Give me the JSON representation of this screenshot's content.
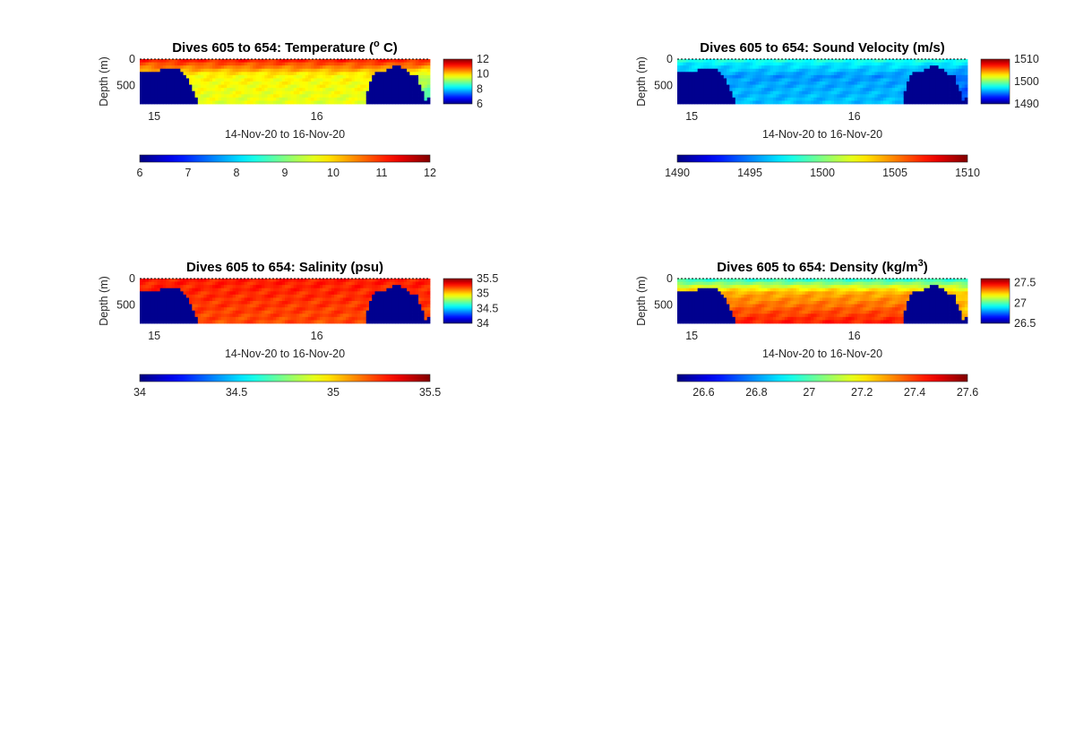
{
  "chart_data": [
    {
      "type": "heatmap",
      "title": "Dives 605 to 654: Temperature (",
      "title_super": "o",
      "title_suffix": " C)",
      "xlabel": "14-Nov-20 to 16-Nov-20",
      "ylabel": "Depth (m)",
      "x_ticks": [
        "15",
        "16"
      ],
      "y_ticks": [
        "0",
        "500"
      ],
      "ylim": [
        0,
        850
      ],
      "variable": "temperature",
      "cmin": 6,
      "cmax": 12,
      "right_colorbar_ticks": [
        "12",
        "10",
        "8",
        "6"
      ],
      "bottom_colorbar_ticks": [
        "6",
        "7",
        "8",
        "9",
        "10",
        "11",
        "12"
      ]
    },
    {
      "type": "heatmap",
      "title": "Dives 605 to 654: Sound Velocity (m/s)",
      "title_super": "",
      "title_suffix": "",
      "xlabel": "14-Nov-20 to 16-Nov-20",
      "ylabel": "Depth (m)",
      "x_ticks": [
        "15",
        "16"
      ],
      "y_ticks": [
        "0",
        "500"
      ],
      "ylim": [
        0,
        850
      ],
      "variable": "sound_velocity",
      "cmin": 1490,
      "cmax": 1510,
      "right_colorbar_ticks": [
        "1510",
        "1500",
        "1490"
      ],
      "bottom_colorbar_ticks": [
        "1490",
        "1495",
        "1500",
        "1505",
        "1510"
      ]
    },
    {
      "type": "heatmap",
      "title": "Dives 605 to 654: Salinity (psu)",
      "title_super": "",
      "title_suffix": "",
      "xlabel": "14-Nov-20 to 16-Nov-20",
      "ylabel": "Depth (m)",
      "x_ticks": [
        "15",
        "16"
      ],
      "y_ticks": [
        "0",
        "500"
      ],
      "ylim": [
        0,
        850
      ],
      "variable": "salinity",
      "cmin": 34,
      "cmax": 35.5,
      "right_colorbar_ticks": [
        "35.5",
        "35",
        "34.5",
        "34"
      ],
      "bottom_colorbar_ticks": [
        "34",
        "34.5",
        "35",
        "35.5"
      ]
    },
    {
      "type": "heatmap",
      "title": "Dives 605 to 654: Density (kg/m",
      "title_super": "3",
      "title_suffix": ")",
      "xlabel": "14-Nov-20 to 16-Nov-20",
      "ylabel": "Depth (m)",
      "x_ticks": [
        "15",
        "16"
      ],
      "y_ticks": [
        "0",
        "500"
      ],
      "ylim": [
        0,
        850
      ],
      "variable": "density",
      "cmin": 26.5,
      "cmax": 27.6,
      "right_colorbar_ticks": [
        "27.5",
        "27",
        "26.5"
      ],
      "bottom_colorbar_ticks": [
        "26.6",
        "26.8",
        "27",
        "27.2",
        "27.4",
        "27.6"
      ]
    }
  ],
  "colors": {
    "background": "#ffffff",
    "seafloor": "#00008f",
    "text": "#262626"
  },
  "dive_bottom_depth_m": [
    240,
    240,
    240,
    240,
    230,
    230,
    220,
    190,
    170,
    160,
    160,
    160,
    170,
    190,
    230,
    300,
    380,
    480,
    580,
    700,
    850,
    850,
    850,
    850,
    850,
    850,
    850,
    850,
    850,
    850,
    850,
    850,
    850,
    850,
    850,
    850,
    850,
    850,
    850,
    850,
    850,
    850,
    850,
    850,
    850,
    850,
    850,
    850,
    850,
    850,
    850,
    850,
    850,
    850,
    850,
    850,
    850,
    850,
    850,
    850,
    850,
    850,
    850,
    850,
    850,
    850,
    850,
    850,
    850,
    850,
    850,
    850,
    850,
    850,
    850,
    850,
    850,
    850,
    600,
    440,
    290,
    270,
    250,
    250,
    240,
    210,
    170,
    140,
    140,
    140,
    160,
    200,
    240,
    280,
    280,
    330,
    490,
    580,
    780,
    700
  ]
}
